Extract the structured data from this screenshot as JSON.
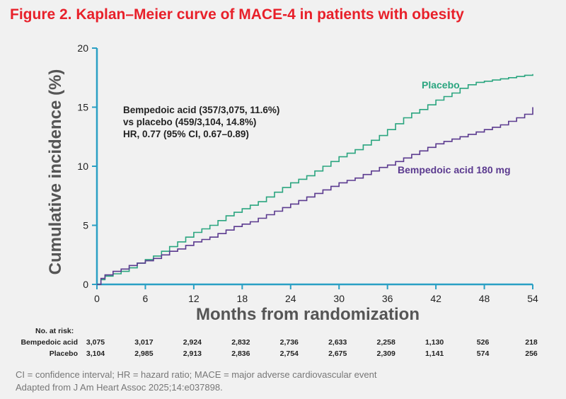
{
  "figure_title": "Figure 2. Kaplan–Meier curve of MACE-4 in patients with obesity",
  "chart_data": {
    "type": "line",
    "xlabel": "Months from randomization",
    "ylabel": "Cumulative incidence (%)",
    "xlim": [
      0,
      54
    ],
    "ylim": [
      0,
      20
    ],
    "xticks": [
      0,
      6,
      12,
      18,
      24,
      30,
      36,
      42,
      48,
      54
    ],
    "yticks": [
      0,
      5,
      10,
      15,
      20
    ],
    "grid": false,
    "annotation": [
      "Bempedoic acid (357/3,075, 11.6%)",
      "vs placebo (459/3,104, 14.8%)",
      "HR, 0.77 (95% CI, 0.67–0.89)"
    ],
    "series": [
      {
        "name": "Placebo",
        "color": "#2aa57f",
        "x": [
          0,
          0.5,
          1,
          2,
          3,
          4,
          5,
          6,
          7,
          8,
          9,
          10,
          11,
          12,
          13,
          14,
          15,
          16,
          17,
          18,
          19,
          20,
          21,
          22,
          23,
          24,
          25,
          26,
          27,
          28,
          29,
          30,
          31,
          32,
          33,
          34,
          35,
          36,
          37,
          38,
          39,
          40,
          41,
          42,
          43,
          44,
          45,
          46,
          47,
          48,
          49,
          50,
          51,
          52,
          53,
          54
        ],
        "y": [
          0,
          0.4,
          0.7,
          0.9,
          1.1,
          1.4,
          1.8,
          2.1,
          2.4,
          2.8,
          3.2,
          3.6,
          4.0,
          4.4,
          4.7,
          5.0,
          5.4,
          5.8,
          6.1,
          6.4,
          6.7,
          7.0,
          7.4,
          7.8,
          8.2,
          8.6,
          8.9,
          9.2,
          9.6,
          10.0,
          10.4,
          10.8,
          11.1,
          11.4,
          11.8,
          12.2,
          12.6,
          13.1,
          13.6,
          14.1,
          14.5,
          14.8,
          15.2,
          15.6,
          15.9,
          16.2,
          16.6,
          16.9,
          17.1,
          17.2,
          17.3,
          17.4,
          17.5,
          17.6,
          17.7,
          17.8
        ]
      },
      {
        "name": "Bempedoic acid 180 mg",
        "color": "#5b3a8f",
        "x": [
          0,
          0.5,
          1,
          2,
          3,
          4,
          5,
          6,
          7,
          8,
          9,
          10,
          11,
          12,
          13,
          14,
          15,
          16,
          17,
          18,
          19,
          20,
          21,
          22,
          23,
          24,
          25,
          26,
          27,
          28,
          29,
          30,
          31,
          32,
          33,
          34,
          35,
          36,
          37,
          38,
          39,
          40,
          41,
          42,
          43,
          44,
          45,
          46,
          47,
          48,
          49,
          50,
          51,
          52,
          53,
          54
        ],
        "y": [
          0,
          0.5,
          0.8,
          1.1,
          1.3,
          1.6,
          1.8,
          2.0,
          2.2,
          2.5,
          2.8,
          3.0,
          3.3,
          3.6,
          3.8,
          4.0,
          4.3,
          4.6,
          4.9,
          5.1,
          5.3,
          5.6,
          5.9,
          6.2,
          6.5,
          6.8,
          7.1,
          7.4,
          7.7,
          8.0,
          8.3,
          8.6,
          8.8,
          9.0,
          9.3,
          9.6,
          9.9,
          10.1,
          10.4,
          10.7,
          11.0,
          11.3,
          11.6,
          11.9,
          12.1,
          12.3,
          12.5,
          12.7,
          12.9,
          13.1,
          13.3,
          13.5,
          13.8,
          14.1,
          14.4,
          15.0
        ]
      }
    ],
    "series_labels": [
      "Placebo",
      "Bempedoic acid 180 mg"
    ]
  },
  "risk_table": {
    "title": "No. at risk:",
    "rows": [
      {
        "label": "Bempedoic acid",
        "values": [
          "3,075",
          "3,017",
          "2,924",
          "2,832",
          "2,736",
          "2,633",
          "2,258",
          "1,130",
          "526",
          "218"
        ]
      },
      {
        "label": "Placebo",
        "values": [
          "3,104",
          "2,985",
          "2,913",
          "2,836",
          "2,754",
          "2,675",
          "2,309",
          "1,141",
          "574",
          "256"
        ]
      }
    ]
  },
  "footnote": [
    "CI = confidence interval; HR = hazard ratio; MACE = major adverse cardiovascular event",
    "Adapted from J Am Heart Assoc 2025;14:e037898."
  ]
}
